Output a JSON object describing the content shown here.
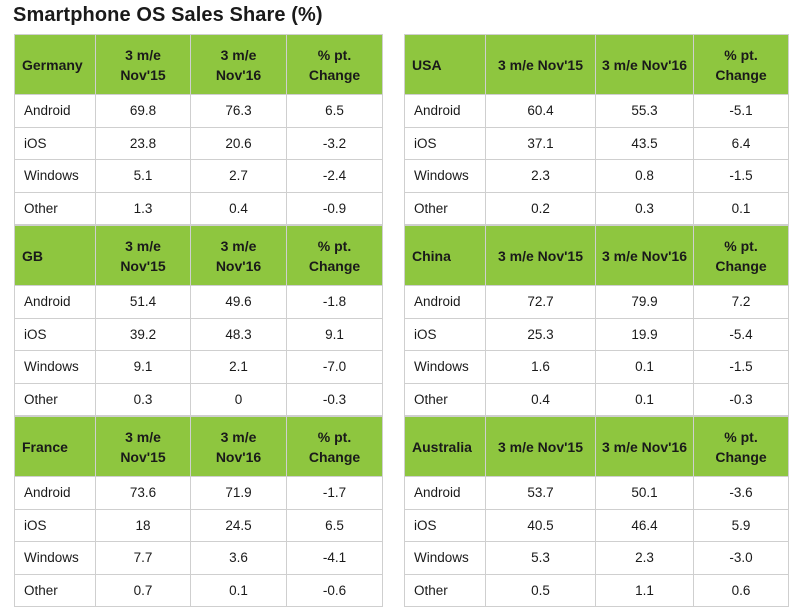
{
  "title": "Smartphone OS Sales Share (%)",
  "header_color": "#8ec63f",
  "chart_data": {
    "type": "table",
    "title": "Smartphone OS Sales Share (%)",
    "tables": [
      {
        "country": "Germany",
        "headers": [
          "3 m/e Nov'15",
          "3 m/e Nov'16",
          "% pt. Change"
        ],
        "rows": [
          [
            "Android",
            "69.8",
            "76.3",
            "6.5"
          ],
          [
            "iOS",
            "23.8",
            "20.6",
            "-3.2"
          ],
          [
            "Windows",
            "5.1",
            "2.7",
            "-2.4"
          ],
          [
            "Other",
            "1.3",
            "0.4",
            "-0.9"
          ]
        ]
      },
      {
        "country": "USA",
        "headers": [
          "3 m/e Nov'15",
          "3 m/e Nov'16",
          "% pt. Change"
        ],
        "rows": [
          [
            "Android",
            "60.4",
            "55.3",
            "-5.1"
          ],
          [
            "iOS",
            "37.1",
            "43.5",
            "6.4"
          ],
          [
            "Windows",
            "2.3",
            "0.8",
            "-1.5"
          ],
          [
            "Other",
            "0.2",
            "0.3",
            "0.1"
          ]
        ]
      },
      {
        "country": "GB",
        "headers": [
          "3 m/e Nov'15",
          "3 m/e Nov'16",
          "% pt. Change"
        ],
        "rows": [
          [
            "Android",
            "51.4",
            "49.6",
            "-1.8"
          ],
          [
            "iOS",
            "39.2",
            "48.3",
            "9.1"
          ],
          [
            "Windows",
            "9.1",
            "2.1",
            "-7.0"
          ],
          [
            "Other",
            "0.3",
            "0",
            "-0.3"
          ]
        ]
      },
      {
        "country": "China",
        "headers": [
          "3 m/e Nov'15",
          "3 m/e Nov'16",
          "% pt. Change"
        ],
        "rows": [
          [
            "Android",
            "72.7",
            "79.9",
            "7.2"
          ],
          [
            "iOS",
            "25.3",
            "19.9",
            "-5.4"
          ],
          [
            "Windows",
            "1.6",
            "0.1",
            "-1.5"
          ],
          [
            "Other",
            "0.4",
            "0.1",
            "-0.3"
          ]
        ]
      },
      {
        "country": "France",
        "headers": [
          "3 m/e Nov'15",
          "3 m/e Nov'16",
          "% pt. Change"
        ],
        "rows": [
          [
            "Android",
            "73.6",
            "71.9",
            "-1.7"
          ],
          [
            "iOS",
            "18",
            "24.5",
            "6.5"
          ],
          [
            "Windows",
            "7.7",
            "3.6",
            "-4.1"
          ],
          [
            "Other",
            "0.7",
            "0.1",
            "-0.6"
          ]
        ]
      },
      {
        "country": "Australia",
        "headers": [
          "3 m/e Nov'15",
          "3 m/e Nov'16",
          "% pt. Change"
        ],
        "rows": [
          [
            "Android",
            "53.7",
            "50.1",
            "-3.6"
          ],
          [
            "iOS",
            "40.5",
            "46.4",
            "5.9"
          ],
          [
            "Windows",
            "5.3",
            "2.3",
            "-3.0"
          ],
          [
            "Other",
            "0.5",
            "1.1",
            "0.6"
          ]
        ]
      }
    ]
  }
}
